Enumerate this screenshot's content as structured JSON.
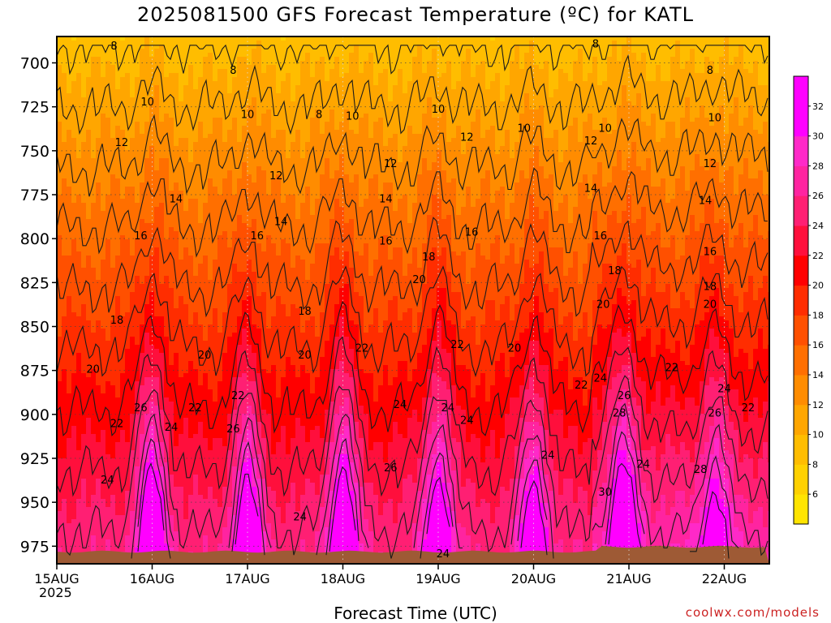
{
  "header": {
    "title": "2025081500 GFS Forecast Temperature (ºC) for KATL"
  },
  "footer": {
    "xlabel": "Forecast Time (UTC)",
    "credit": "coolwx.com/models",
    "year": "2025"
  },
  "chart_data": {
    "type": "heatmap",
    "title": "2025081500 GFS Forecast Temperature (ºC) for KATL",
    "xlabel": "Forecast Time (UTC)",
    "ylabel": "",
    "x_ticks": [
      "15AUG",
      "16AUG",
      "17AUG",
      "18AUG",
      "19AUG",
      "20AUG",
      "21AUG",
      "22AUG"
    ],
    "y_ticks": [
      700,
      725,
      750,
      775,
      800,
      825,
      850,
      875,
      900,
      925,
      950,
      975
    ],
    "ylim": [
      985,
      685
    ],
    "xlim_days": [
      0,
      7.5
    ],
    "y_reversed": true,
    "grid": "dotted",
    "colorbar": {
      "ticks": [
        6,
        8,
        10,
        12,
        14,
        16,
        18,
        20,
        22,
        24,
        26,
        28,
        30,
        32
      ],
      "colors": [
        "#ffe400",
        "#ffd100",
        "#ffbd00",
        "#ffa600",
        "#ff8c00",
        "#ff6f00",
        "#ff5000",
        "#ff2d00",
        "#ff0000",
        "#ff0f3c",
        "#ff1f73",
        "#ff24a0",
        "#ff29c8",
        "#ff00ff",
        "#ff00ff"
      ]
    },
    "isotherm_levels": [
      8,
      10,
      12,
      14,
      16,
      18,
      20,
      22,
      24,
      26,
      28,
      30
    ],
    "contour_labels": [
      {
        "text": "8",
        "day": 0.6,
        "p": 690
      },
      {
        "text": "8",
        "day": 1.85,
        "p": 704
      },
      {
        "text": "8",
        "day": 2.75,
        "p": 729
      },
      {
        "text": "8",
        "day": 5.65,
        "p": 689
      },
      {
        "text": "8",
        "day": 6.85,
        "p": 704
      },
      {
        "text": "10",
        "day": 0.95,
        "p": 722
      },
      {
        "text": "10",
        "day": 2.0,
        "p": 729
      },
      {
        "text": "10",
        "day": 3.1,
        "p": 730
      },
      {
        "text": "10",
        "day": 4.0,
        "p": 726
      },
      {
        "text": "10",
        "day": 4.9,
        "p": 737
      },
      {
        "text": "10",
        "day": 5.75,
        "p": 737
      },
      {
        "text": "10",
        "day": 6.9,
        "p": 731
      },
      {
        "text": "12",
        "day": 0.68,
        "p": 745
      },
      {
        "text": "12",
        "day": 2.3,
        "p": 764
      },
      {
        "text": "12",
        "day": 3.5,
        "p": 757
      },
      {
        "text": "12",
        "day": 4.3,
        "p": 742
      },
      {
        "text": "12",
        "day": 5.6,
        "p": 744
      },
      {
        "text": "12",
        "day": 6.85,
        "p": 757
      },
      {
        "text": "14",
        "day": 1.25,
        "p": 777
      },
      {
        "text": "14",
        "day": 2.35,
        "p": 790
      },
      {
        "text": "14",
        "day": 3.45,
        "p": 777
      },
      {
        "text": "14",
        "day": 5.6,
        "p": 771
      },
      {
        "text": "14",
        "day": 6.8,
        "p": 778
      },
      {
        "text": "16",
        "day": 0.88,
        "p": 798
      },
      {
        "text": "16",
        "day": 2.1,
        "p": 798
      },
      {
        "text": "16",
        "day": 3.45,
        "p": 801
      },
      {
        "text": "16",
        "day": 4.35,
        "p": 796
      },
      {
        "text": "16",
        "day": 5.7,
        "p": 798
      },
      {
        "text": "16",
        "day": 6.85,
        "p": 807
      },
      {
        "text": "18",
        "day": 0.63,
        "p": 846
      },
      {
        "text": "18",
        "day": 2.6,
        "p": 841
      },
      {
        "text": "18",
        "day": 3.9,
        "p": 810
      },
      {
        "text": "18",
        "day": 5.85,
        "p": 818
      },
      {
        "text": "18",
        "day": 6.85,
        "p": 827
      },
      {
        "text": "20",
        "day": 0.38,
        "p": 874
      },
      {
        "text": "20",
        "day": 1.55,
        "p": 866
      },
      {
        "text": "20",
        "day": 2.6,
        "p": 866
      },
      {
        "text": "20",
        "day": 3.8,
        "p": 823
      },
      {
        "text": "20",
        "day": 4.8,
        "p": 862
      },
      {
        "text": "20",
        "day": 5.73,
        "p": 837
      },
      {
        "text": "20",
        "day": 6.85,
        "p": 837
      },
      {
        "text": "22",
        "day": 0.63,
        "p": 905
      },
      {
        "text": "22",
        "day": 1.45,
        "p": 896
      },
      {
        "text": "22",
        "day": 1.9,
        "p": 889
      },
      {
        "text": "22",
        "day": 3.2,
        "p": 862
      },
      {
        "text": "22",
        "day": 4.2,
        "p": 860
      },
      {
        "text": "22",
        "day": 5.5,
        "p": 883
      },
      {
        "text": "22",
        "day": 6.45,
        "p": 873
      },
      {
        "text": "22",
        "day": 7.25,
        "p": 896
      },
      {
        "text": "24",
        "day": 0.53,
        "p": 937
      },
      {
        "text": "24",
        "day": 1.2,
        "p": 907
      },
      {
        "text": "24",
        "day": 2.55,
        "p": 958
      },
      {
        "text": "24",
        "day": 3.6,
        "p": 894
      },
      {
        "text": "24",
        "day": 4.1,
        "p": 896
      },
      {
        "text": "24",
        "day": 4.3,
        "p": 903
      },
      {
        "text": "24",
        "day": 4.05,
        "p": 979
      },
      {
        "text": "24",
        "day": 5.15,
        "p": 923
      },
      {
        "text": "24",
        "day": 5.7,
        "p": 879
      },
      {
        "text": "24",
        "day": 6.15,
        "p": 928
      },
      {
        "text": "24",
        "day": 7.0,
        "p": 885
      },
      {
        "text": "26",
        "day": 0.88,
        "p": 896
      },
      {
        "text": "26",
        "day": 1.85,
        "p": 908
      },
      {
        "text": "26",
        "day": 3.5,
        "p": 930
      },
      {
        "text": "26",
        "day": 5.95,
        "p": 889
      },
      {
        "text": "26",
        "day": 6.9,
        "p": 899
      },
      {
        "text": "28",
        "day": 5.9,
        "p": 899
      },
      {
        "text": "28",
        "day": 6.75,
        "p": 931
      },
      {
        "text": "30",
        "day": 5.75,
        "p": 944
      }
    ]
  }
}
